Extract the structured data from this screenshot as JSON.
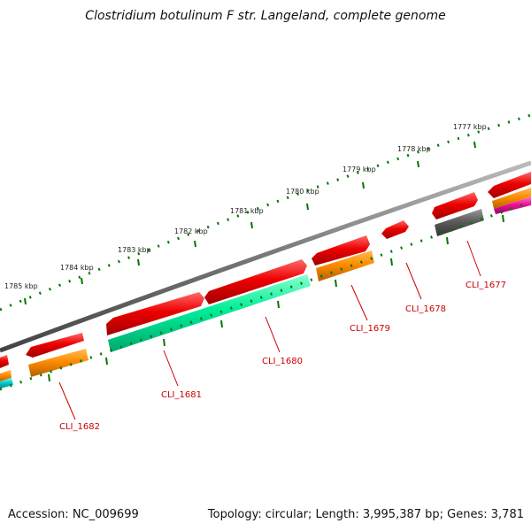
{
  "title": "Clostridium botulinum F str. Langeland, complete genome",
  "footer": {
    "accession": "Accession: NC_009699",
    "summary": "Topology: circular; Length: 3,995,387 bp; Genes: 3,781"
  },
  "kbp_labels": [
    "1785 kbp",
    "1784 kbp",
    "1783 kbp",
    "1782 kbp",
    "1781 kbp",
    "1780 kbp",
    "1779 kbp",
    "1778 kbp",
    "1777 kbp"
  ],
  "gene_labels": [
    "CLI_1677",
    "CLI_1678",
    "CLI_1679",
    "CLI_1680",
    "CLI_1681",
    "CLI_1682"
  ],
  "colors": {
    "cds": "#ee0000",
    "orange": "#ff8c00",
    "green": "#00ee99",
    "gray": "#555555",
    "magenta": "#ee1199",
    "cyan": "#00cccc",
    "backbone": "#777777",
    "ticks": "#007700",
    "label": "#cc0000"
  }
}
